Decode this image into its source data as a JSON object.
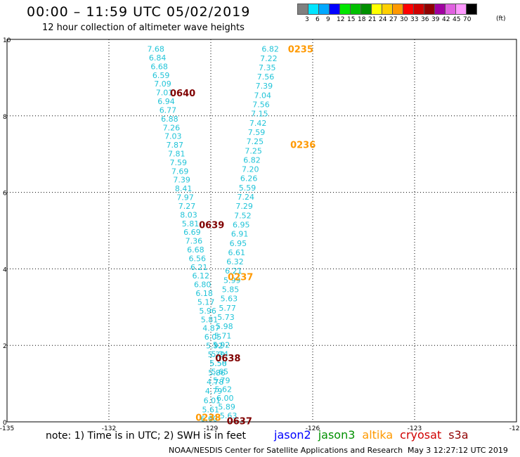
{
  "header": {
    "title": "00:00 – 11:59 UTC 05/02/2019",
    "subtitle": "12 hour collection of altimeter wave heights"
  },
  "colorbar": {
    "unit": "(ft)",
    "cells": [
      {
        "color": "#808080",
        "label": "3"
      },
      {
        "color": "#00e5ff",
        "label": "6"
      },
      {
        "color": "#00a8ff",
        "label": "9"
      },
      {
        "color": "#0000ff",
        "label": "12"
      },
      {
        "color": "#00e600",
        "label": "15"
      },
      {
        "color": "#00c000",
        "label": "18"
      },
      {
        "color": "#009000",
        "label": "21"
      },
      {
        "color": "#ffff00",
        "label": "24"
      },
      {
        "color": "#ffd000",
        "label": "27"
      },
      {
        "color": "#ff9900",
        "label": "30"
      },
      {
        "color": "#ff0000",
        "label": "33"
      },
      {
        "color": "#d00000",
        "label": "36"
      },
      {
        "color": "#900000",
        "label": "39"
      },
      {
        "color": "#a000a0",
        "label": "42"
      },
      {
        "color": "#e060e0",
        "label": "45"
      },
      {
        "color": "#ff99ff",
        "label": "70"
      },
      {
        "color": "#000000",
        "label": ""
      }
    ]
  },
  "map": {
    "x_ticks": [
      "-135",
      "-132",
      "-129",
      "-126",
      "-123",
      "-120"
    ],
    "y_ticks": [
      "0",
      "2",
      "4",
      "6",
      "8",
      "10"
    ],
    "lon_range": [
      -135,
      -120
    ],
    "lat_range": [
      0,
      10
    ],
    "swh_color": "#22c4d8",
    "tracks": [
      {
        "values": [
          "7.68",
          "6.84",
          "6.68",
          "6.59",
          "7.09",
          "7.01",
          "6.94",
          "6.77",
          "6.88",
          "7.26",
          "7.03",
          "7.87",
          "7.81",
          "7.59",
          "7.69",
          "7.39",
          "8.41",
          "7.97",
          "7.27",
          "8.03",
          "5.81",
          "6.69",
          "7.36",
          "6.68",
          "6.56",
          "6.21",
          "6.12",
          "6.80",
          "6.18",
          "5.17",
          "5.96",
          "5.81",
          "4.87",
          "6.05",
          "5.92",
          "5.39",
          "5.50",
          "5.65",
          "5.79",
          "5.62",
          "6.00",
          "5.89",
          "5.63"
        ],
        "lon_start": -130.62,
        "lat_start": 9.75,
        "lon_end": -128.48,
        "lat_end": 0.17
      },
      {
        "values": [
          "6.82",
          "7.22",
          "7.35",
          "7.56",
          "7.39",
          "7.04",
          "7.56",
          "7.15",
          "7.42",
          "7.59",
          "7.25",
          "7.25",
          "6.82",
          "7.20",
          "6.26",
          "5.59",
          "7.24",
          "7.29",
          "7.52",
          "6.95",
          "6.91",
          "6.95",
          "6.61",
          "6.32",
          "6.21",
          "5.99",
          "5.85",
          "5.63",
          "5.77",
          "5.73",
          "5.98",
          "5.71",
          "5.92",
          "5.24",
          "5.58",
          "5.86",
          "4.78",
          "4.79",
          "6.01",
          "5.61",
          "6.60"
        ],
        "lon_start": -127.25,
        "lat_start": 9.75,
        "lon_end": -129.05,
        "lat_end": 0.08
      }
    ],
    "time_labels": [
      {
        "text": "0235",
        "sat": "altika",
        "lon": -126.73,
        "lat": 9.75
      },
      {
        "text": "0640",
        "sat": "cryosat",
        "lon": -130.2,
        "lat": 8.6
      },
      {
        "text": "0236",
        "sat": "altika",
        "lon": -126.66,
        "lat": 7.25
      },
      {
        "text": "0639",
        "sat": "cryosat",
        "lon": -129.35,
        "lat": 5.16
      },
      {
        "text": "0237",
        "sat": "altika",
        "lon": -128.5,
        "lat": 3.8
      },
      {
        "text": "0638",
        "sat": "cryosat",
        "lon": -128.87,
        "lat": 1.67
      },
      {
        "text": "0238",
        "sat": "altika",
        "lon": -129.45,
        "lat": 0.12
      },
      {
        "text": "0637",
        "sat": "cryosat",
        "lon": -128.53,
        "lat": 0.03
      }
    ]
  },
  "note": "note:  1) Time is in UTC;  2) SWH is in feet",
  "legend": [
    {
      "name": "jason2",
      "color": "#0000ff"
    },
    {
      "name": "jason3",
      "color": "#009000"
    },
    {
      "name": "altika",
      "color": "#ff9900"
    },
    {
      "name": "cryosat",
      "color": "#d00000"
    },
    {
      "name": "s3a",
      "color": "#900000"
    }
  ],
  "footer": {
    "credit": "NOAA/NESDIS Center for Satellite Applications and Research",
    "timestamp": "May  3 12:27:12 UTC 2019"
  }
}
